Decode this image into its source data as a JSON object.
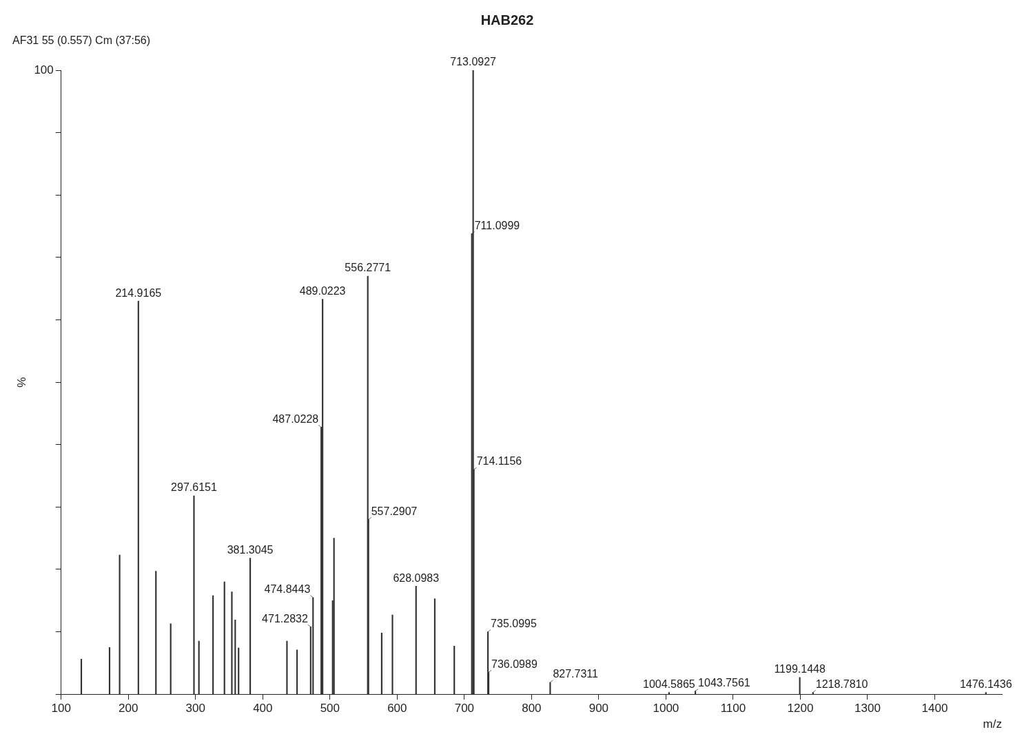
{
  "chart_data": {
    "type": "bar",
    "title": "HAB262",
    "annotations": [
      "AF31 55 (0.557) Cm (37:56)",
      {
        "text": "214.9165",
        "x": 214.9165,
        "y": 63
      },
      {
        "text": "297.6151",
        "x": 297.6151,
        "y": 31.8
      },
      {
        "text": "381.3045",
        "x": 381.3045,
        "y": 21.8
      },
      {
        "text": "471.2832",
        "x": 471.2832,
        "y": 10.8
      },
      {
        "text": "474.8443",
        "x": 474.8443,
        "y": 15.5
      },
      {
        "text": "487.0228",
        "x": 487.0228,
        "y": 42.8
      },
      {
        "text": "489.0223",
        "x": 489.0223,
        "y": 63.3
      },
      {
        "text": "556.2771",
        "x": 556.2771,
        "y": 67
      },
      {
        "text": "557.2907",
        "x": 557.2907,
        "y": 28
      },
      {
        "text": "628.0983",
        "x": 628.0983,
        "y": 17.3
      },
      {
        "text": "711.0999",
        "x": 711.0999,
        "y": 73.8
      },
      {
        "text": "713.0927",
        "x": 713.0927,
        "y": 100
      },
      {
        "text": "714.1156",
        "x": 714.1156,
        "y": 36
      },
      {
        "text": "735.0995",
        "x": 735.0995,
        "y": 10
      },
      {
        "text": "736.0989",
        "x": 736.0989,
        "y": 3.5
      },
      {
        "text": "827.7311",
        "x": 827.7311,
        "y": 1.9
      },
      {
        "text": "1004.5865",
        "x": 1004.5865,
        "y": 0.3
      },
      {
        "text": "1043.7561",
        "x": 1043.7561,
        "y": 0.5
      },
      {
        "text": "1199.1448",
        "x": 1199.1448,
        "y": 2.7
      },
      {
        "text": "1218.7810",
        "x": 1218.781,
        "y": 0.3
      },
      {
        "text": "1476.1436",
        "x": 1476.1436,
        "y": 0.3
      }
    ],
    "xlabel": "m/z",
    "ylabel": "%",
    "x": [
      130,
      172,
      187,
      214.9165,
      241,
      263,
      297.6151,
      305,
      326,
      343,
      354,
      359,
      364,
      381.3045,
      436,
      451,
      471.2832,
      474.8443,
      487.0228,
      489.0223,
      504,
      506,
      556.2771,
      557.2907,
      577,
      593,
      628.0983,
      656,
      685,
      711.0999,
      713.0927,
      714.1156,
      735.0995,
      736.0989,
      827.7311,
      1004.5865,
      1043.7561,
      1199.1448,
      1218.781,
      1476.1436
    ],
    "values": [
      5.6,
      7.5,
      22.3,
      63,
      19.7,
      11.3,
      31.8,
      8.5,
      15.8,
      18,
      16.4,
      11.9,
      7.4,
      21.8,
      8.5,
      7.1,
      10.8,
      15.5,
      42.8,
      63.3,
      15,
      25,
      67,
      28,
      9.8,
      12.7,
      17.3,
      15.3,
      7.7,
      73.8,
      100,
      36,
      10,
      3.5,
      1.9,
      0.3,
      0.5,
      2.7,
      0.3,
      0.3
    ],
    "color": "#333333",
    "xlim": [
      100,
      1500
    ],
    "xticks": [
      100,
      200,
      300,
      400,
      500,
      600,
      700,
      800,
      900,
      1000,
      1100,
      1200,
      1300,
      1400
    ],
    "ylim": [
      0,
      100
    ],
    "yticks": [
      0,
      {
        "value": 10,
        "label": null
      },
      {
        "value": 20,
        "label": null
      },
      {
        "value": 30,
        "label": null
      },
      {
        "value": 40,
        "label": null
      },
      {
        "value": 50,
        "label": null
      },
      {
        "value": 60,
        "label": null
      },
      {
        "value": 70,
        "label": null
      },
      {
        "value": 80,
        "label": null
      },
      {
        "value": 90,
        "label": null
      },
      100
    ],
    "grid": false,
    "legend": false
  }
}
